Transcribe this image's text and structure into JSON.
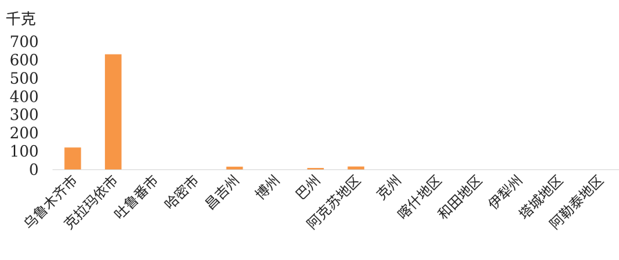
{
  "chart_data": {
    "type": "bar",
    "unit_label": "千克",
    "categories": [
      "乌鲁木齐市",
      "克拉玛依市",
      "吐鲁番市",
      "哈密市",
      "昌吉州",
      "博州",
      "巴州",
      "阿克苏地区",
      "克州",
      "喀什地区",
      "和田地区",
      "伊犁州",
      "塔城地区",
      "阿勒泰地区"
    ],
    "values": [
      120,
      630,
      0,
      0,
      15,
      0,
      8,
      16,
      0,
      0,
      0,
      0,
      0,
      0
    ],
    "ylim": [
      0,
      700
    ],
    "yticks": [
      "0",
      "100",
      "200",
      "300",
      "400",
      "500",
      "600",
      "700"
    ],
    "bar_color": "#f79646",
    "grid": false,
    "legend": "none",
    "xlabel": "",
    "ylabel": ""
  }
}
